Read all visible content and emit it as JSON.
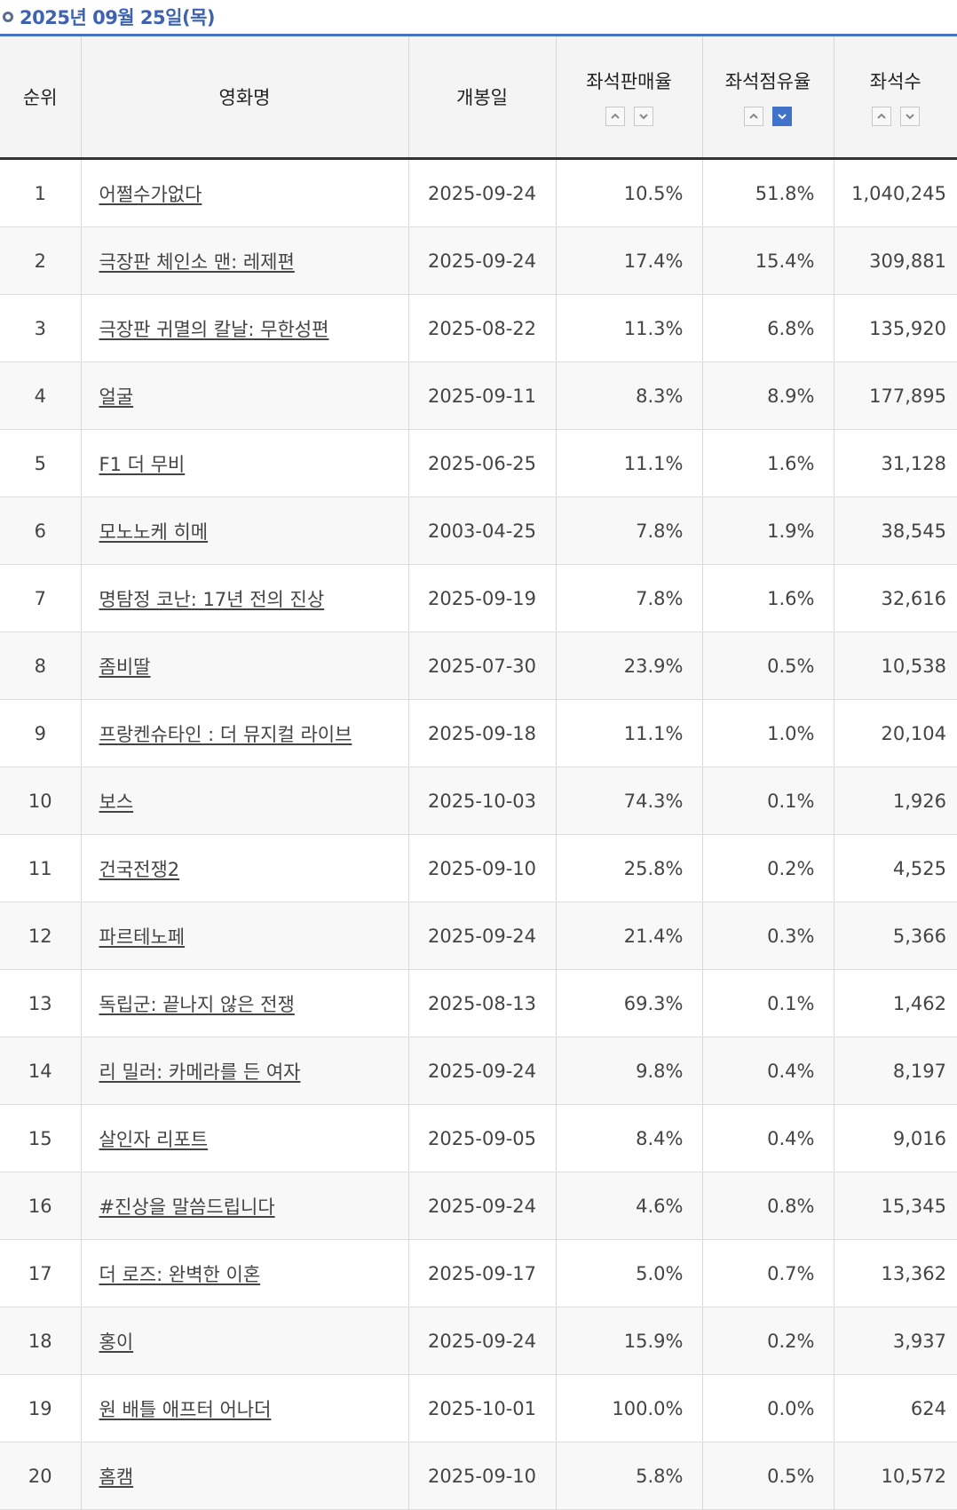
{
  "title": "2025년 09월 25일(목)",
  "columns": {
    "rank": "순위",
    "name": "영화명",
    "release": "개봉일",
    "sales_rate": "좌석판매율",
    "share_rate": "좌석점유율",
    "seats": "좌석수"
  },
  "sort_icons": {
    "up": "chevron-up-icon",
    "down": "chevron-down-icon",
    "active_color": "#3f72c8"
  },
  "rows": [
    {
      "rank": "1",
      "name": "어쩔수가없다",
      "release": "2025-09-24",
      "sales_rate": "10.5%",
      "share_rate": "51.8%",
      "seats": "1,040,245"
    },
    {
      "rank": "2",
      "name": "극장판 체인소 맨: 레제편",
      "release": "2025-09-24",
      "sales_rate": "17.4%",
      "share_rate": "15.4%",
      "seats": "309,881"
    },
    {
      "rank": "3",
      "name": "극장판 귀멸의 칼날: 무한성편",
      "release": "2025-08-22",
      "sales_rate": "11.3%",
      "share_rate": "6.8%",
      "seats": "135,920"
    },
    {
      "rank": "4",
      "name": "얼굴",
      "release": "2025-09-11",
      "sales_rate": "8.3%",
      "share_rate": "8.9%",
      "seats": "177,895"
    },
    {
      "rank": "5",
      "name": "F1 더 무비",
      "release": "2025-06-25",
      "sales_rate": "11.1%",
      "share_rate": "1.6%",
      "seats": "31,128"
    },
    {
      "rank": "6",
      "name": "모노노케 히메",
      "release": "2003-04-25",
      "sales_rate": "7.8%",
      "share_rate": "1.9%",
      "seats": "38,545"
    },
    {
      "rank": "7",
      "name": "명탐정 코난: 17년 전의 진상",
      "release": "2025-09-19",
      "sales_rate": "7.8%",
      "share_rate": "1.6%",
      "seats": "32,616"
    },
    {
      "rank": "8",
      "name": "좀비딸",
      "release": "2025-07-30",
      "sales_rate": "23.9%",
      "share_rate": "0.5%",
      "seats": "10,538"
    },
    {
      "rank": "9",
      "name": "프랑켄슈타인 : 더 뮤지컬 라이브",
      "release": "2025-09-18",
      "sales_rate": "11.1%",
      "share_rate": "1.0%",
      "seats": "20,104"
    },
    {
      "rank": "10",
      "name": "보스",
      "release": "2025-10-03",
      "sales_rate": "74.3%",
      "share_rate": "0.1%",
      "seats": "1,926"
    },
    {
      "rank": "11",
      "name": "건국전쟁2",
      "release": "2025-09-10",
      "sales_rate": "25.8%",
      "share_rate": "0.2%",
      "seats": "4,525"
    },
    {
      "rank": "12",
      "name": "파르테노페",
      "release": "2025-09-24",
      "sales_rate": "21.4%",
      "share_rate": "0.3%",
      "seats": "5,366"
    },
    {
      "rank": "13",
      "name": "독립군: 끝나지 않은 전쟁",
      "release": "2025-08-13",
      "sales_rate": "69.3%",
      "share_rate": "0.1%",
      "seats": "1,462"
    },
    {
      "rank": "14",
      "name": "리 밀러: 카메라를 든 여자",
      "release": "2025-09-24",
      "sales_rate": "9.8%",
      "share_rate": "0.4%",
      "seats": "8,197"
    },
    {
      "rank": "15",
      "name": "살인자 리포트",
      "release": "2025-09-05",
      "sales_rate": "8.4%",
      "share_rate": "0.4%",
      "seats": "9,016"
    },
    {
      "rank": "16",
      "name": "#진상을 말씀드립니다",
      "release": "2025-09-24",
      "sales_rate": "4.6%",
      "share_rate": "0.8%",
      "seats": "15,345"
    },
    {
      "rank": "17",
      "name": "더 로즈: 완벽한 이혼",
      "release": "2025-09-17",
      "sales_rate": "5.0%",
      "share_rate": "0.7%",
      "seats": "13,362"
    },
    {
      "rank": "18",
      "name": "홍이",
      "release": "2025-09-24",
      "sales_rate": "15.9%",
      "share_rate": "0.2%",
      "seats": "3,937"
    },
    {
      "rank": "19",
      "name": "원 배틀 애프터 어나더",
      "release": "2025-10-01",
      "sales_rate": "100.0%",
      "share_rate": "0.0%",
      "seats": "624"
    },
    {
      "rank": "20",
      "name": "홈캠",
      "release": "2025-09-10",
      "sales_rate": "5.8%",
      "share_rate": "0.5%",
      "seats": "10,572"
    }
  ]
}
